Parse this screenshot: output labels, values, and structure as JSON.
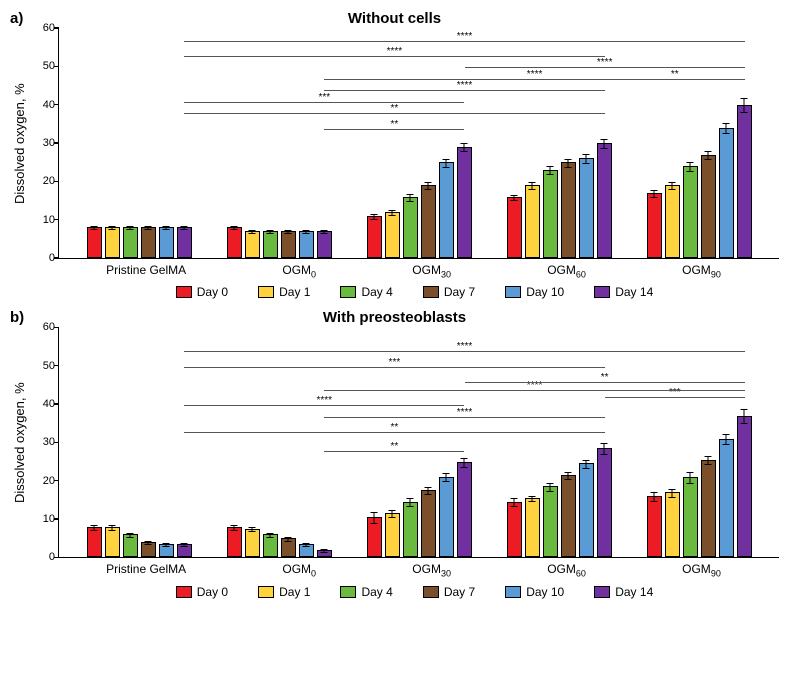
{
  "colors": {
    "day0": "#ed1c24",
    "day1": "#ffd23f",
    "day4": "#6aba3f",
    "day7": "#7a4f2a",
    "day10": "#5b9bd5",
    "day14": "#7030a0",
    "border": "#000000",
    "background": "#ffffff",
    "sig": "#555555"
  },
  "ylabel": "Dissolved oxygen, %",
  "ymax": 60,
  "ytick_step": 10,
  "categories": [
    "Pristine GelMA",
    "OGM0",
    "OGM30",
    "OGM60",
    "OGM90"
  ],
  "category_sub": [
    "",
    "0",
    "30",
    "60",
    "90"
  ],
  "category_base": [
    "Pristine GelMA",
    "OGM",
    "OGM",
    "OGM",
    "OGM"
  ],
  "days": [
    "Day 0",
    "Day 1",
    "Day 4",
    "Day 7",
    "Day 10",
    "Day 14"
  ],
  "panel_a": {
    "label": "a)",
    "title": "Without cells",
    "data": [
      [
        8,
        8,
        8,
        8,
        8,
        8
      ],
      [
        8,
        7,
        7,
        7,
        7,
        7
      ],
      [
        11,
        12,
        16,
        19,
        25,
        29
      ],
      [
        16,
        19,
        23,
        25,
        26,
        30
      ],
      [
        17,
        19,
        24,
        27,
        34,
        40
      ]
    ],
    "err": [
      [
        0.5,
        0.5,
        0.5,
        0.5,
        0.5,
        0.5
      ],
      [
        0.5,
        0.5,
        0.5,
        0.5,
        0.5,
        0.5
      ],
      [
        0.7,
        0.7,
        1,
        1,
        1.2,
        1.2
      ],
      [
        0.8,
        1,
        1.2,
        1.2,
        1.3,
        1.3
      ],
      [
        1,
        1,
        1.2,
        1.3,
        1.5,
        2
      ]
    ],
    "sig": [
      {
        "from": [
          1,
          5
        ],
        "to": [
          2,
          5
        ],
        "y": 34,
        "label": "**"
      },
      {
        "from": [
          0,
          5
        ],
        "to": [
          3,
          5
        ],
        "y": 38,
        "label": "**"
      },
      {
        "from": [
          0,
          5
        ],
        "to": [
          2,
          5
        ],
        "y": 41,
        "label": "***"
      },
      {
        "from": [
          1,
          5
        ],
        "to": [
          3,
          5
        ],
        "y": 44,
        "label": "****"
      },
      {
        "from": [
          1,
          5
        ],
        "to": [
          4,
          5
        ],
        "y": 47,
        "label": "****"
      },
      {
        "from": [
          3,
          5
        ],
        "to": [
          4,
          5
        ],
        "y": 47,
        "label": "**"
      },
      {
        "from": [
          2,
          5
        ],
        "to": [
          4,
          5
        ],
        "y": 50,
        "label": "****"
      },
      {
        "from": [
          0,
          5
        ],
        "to": [
          3,
          5
        ],
        "y": 53,
        "label": "****"
      },
      {
        "from": [
          0,
          5
        ],
        "to": [
          4,
          5
        ],
        "y": 57,
        "label": "****"
      }
    ]
  },
  "panel_b": {
    "label": "b)",
    "title": "With preosteoblasts",
    "data": [
      [
        8,
        8,
        6,
        4,
        3.5,
        3.5
      ],
      [
        8,
        7.5,
        6,
        5,
        3.5,
        2
      ],
      [
        10.5,
        11.5,
        14.5,
        17.5,
        21,
        25
      ],
      [
        14.5,
        15.5,
        18.5,
        21.5,
        24.5,
        28.5
      ],
      [
        16,
        17,
        21,
        25.5,
        31,
        37
      ]
    ],
    "err": [
      [
        0.8,
        0.8,
        0.6,
        0.6,
        0.5,
        0.5
      ],
      [
        0.8,
        0.6,
        0.6,
        0.6,
        0.5,
        0.5
      ],
      [
        1.5,
        1,
        1.2,
        1,
        1.2,
        1.3
      ],
      [
        1.2,
        0.8,
        1.3,
        1,
        1.2,
        1.5
      ],
      [
        1.2,
        1.2,
        1.5,
        1.2,
        1.5,
        2
      ]
    ],
    "sig": [
      {
        "from": [
          1,
          5
        ],
        "to": [
          2,
          5
        ],
        "y": 28,
        "label": "**"
      },
      {
        "from": [
          0,
          5
        ],
        "to": [
          3,
          5
        ],
        "y": 33,
        "label": "**"
      },
      {
        "from": [
          1,
          5
        ],
        "to": [
          3,
          5
        ],
        "y": 37,
        "label": "****"
      },
      {
        "from": [
          0,
          5
        ],
        "to": [
          2,
          5
        ],
        "y": 40,
        "label": "****"
      },
      {
        "from": [
          3,
          5
        ],
        "to": [
          4,
          5
        ],
        "y": 42,
        "label": "***"
      },
      {
        "from": [
          1,
          5
        ],
        "to": [
          4,
          5
        ],
        "y": 44,
        "label": "****"
      },
      {
        "from": [
          2,
          5
        ],
        "to": [
          4,
          5
        ],
        "y": 46,
        "label": "**"
      },
      {
        "from": [
          0,
          5
        ],
        "to": [
          3,
          5
        ],
        "y": 50,
        "label": "***"
      },
      {
        "from": [
          0,
          5
        ],
        "to": [
          4,
          5
        ],
        "y": 54,
        "label": "****"
      }
    ]
  }
}
